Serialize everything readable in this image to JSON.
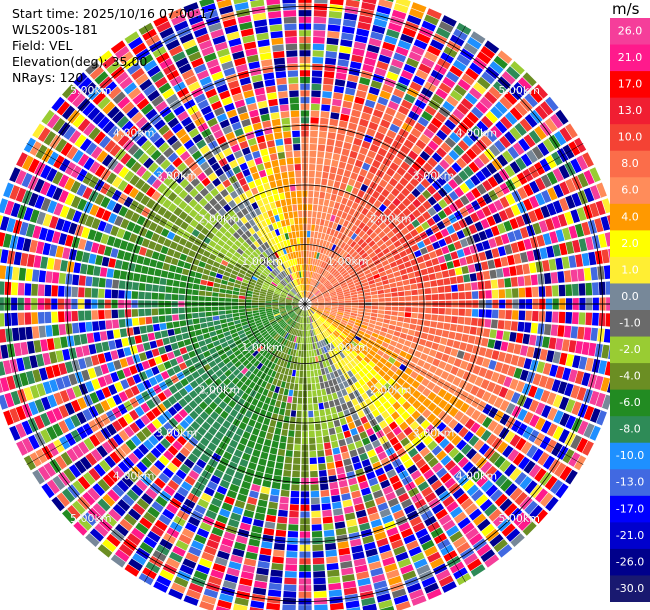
{
  "info": {
    "start_time": "Start time: 2025/10/16 07:00:17",
    "instrument": "WLS200s-181",
    "field": "Field: VEL",
    "elevation": "Elevation(deg): 35.00",
    "nrays": "NRays: 120"
  },
  "colorbar": {
    "unit": "m/s",
    "ticks": [
      "26.0",
      "21.0",
      "17.0",
      "13.0",
      "10.0",
      "8.0",
      "6.0",
      "4.0",
      "2.0",
      "1.0",
      "0.0",
      "-1.0",
      "-2.0",
      "-4.0",
      "-6.0",
      "-8.0",
      "-10.0",
      "-13.0",
      "-17.0",
      "-21.0",
      "-26.0",
      "-30.0"
    ],
    "colors": [
      "#f53e9a",
      "#ff1a8c",
      "#ff0000",
      "#f01e32",
      "#f44234",
      "#fb6d4a",
      "#ff8c5a",
      "#ff9900",
      "#ffff00",
      "#ffee33",
      "#778899",
      "#6a6a6a",
      "#99cc33",
      "#6b8e23",
      "#228b22",
      "#2e8b57",
      "#1e90ff",
      "#4169e1",
      "#0000ff",
      "#0000cd",
      "#00008b",
      "#191970"
    ]
  },
  "chart_data": {
    "type": "heatmap",
    "title": "",
    "field": "VEL",
    "units": "m/s",
    "projection": "polar (PPI)",
    "nrays": 120,
    "elevation_deg": 35.0,
    "range_ring_labels": [
      "1.00km",
      "2.00km",
      "3.00km",
      "4.00km",
      "5.00km"
    ],
    "range_rings_km": [
      1,
      2,
      3,
      4,
      5
    ],
    "max_range_km": 5.4,
    "value_range": [
      -30,
      26
    ],
    "pattern": {
      "positive_sector_azimuth_deg": [
        0,
        135
      ],
      "negative_sector_azimuth_deg": [
        180,
        315
      ],
      "near_range_noise_free_km": 2.6,
      "outer_noise": true
    }
  }
}
